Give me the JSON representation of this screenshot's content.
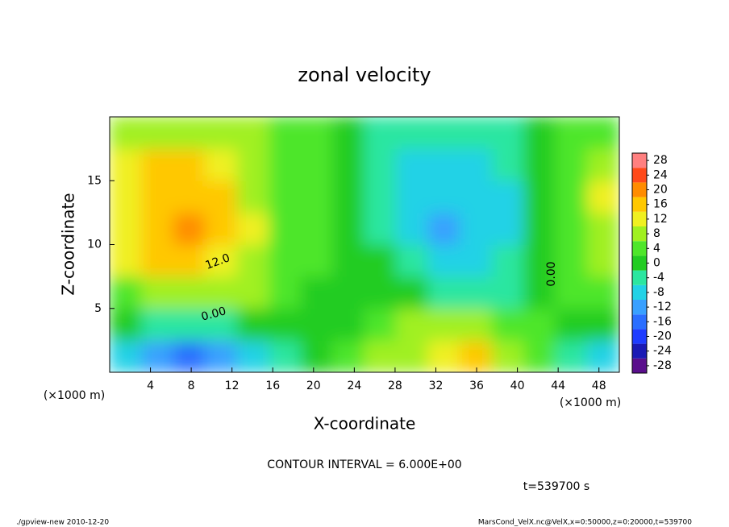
{
  "chart_data": {
    "type": "contour",
    "title": "zonal velocity",
    "x_label": "X-coordinate",
    "y_label": "Z-coordinate",
    "x_unit": "(×1000 m)",
    "xlim": [
      0,
      50
    ],
    "ylim": [
      0,
      20
    ],
    "xticks": [
      4,
      8,
      12,
      16,
      20,
      24,
      28,
      32,
      36,
      40,
      44,
      48
    ],
    "yticks": [
      5,
      10,
      15
    ],
    "z": [
      [
        -8,
        -12,
        -16,
        -14,
        -8,
        -4,
        -2,
        2,
        6,
        8,
        10,
        16,
        8,
        2,
        -4,
        -8
      ],
      [
        -2,
        -4,
        -4,
        -4,
        -2,
        -2,
        -2,
        0,
        4,
        6,
        6,
        6,
        4,
        2,
        0,
        -2
      ],
      [
        4,
        6,
        8,
        8,
        6,
        2,
        0,
        0,
        0,
        -2,
        -4,
        -4,
        -4,
        -2,
        2,
        4
      ],
      [
        10,
        14,
        14,
        12,
        8,
        4,
        2,
        0,
        -2,
        -6,
        -8,
        -8,
        -6,
        -2,
        4,
        6
      ],
      [
        12,
        16,
        20,
        16,
        10,
        4,
        2,
        0,
        -4,
        -8,
        -12,
        -10,
        -8,
        -2,
        4,
        8
      ],
      [
        12,
        16,
        16,
        14,
        8,
        4,
        2,
        0,
        -4,
        -8,
        -10,
        -10,
        -8,
        -2,
        4,
        10
      ],
      [
        10,
        14,
        14,
        12,
        8,
        4,
        2,
        0,
        -4,
        -8,
        -8,
        -8,
        -6,
        -2,
        4,
        8
      ],
      [
        6,
        8,
        8,
        8,
        6,
        4,
        2,
        0,
        -4,
        -6,
        -6,
        -6,
        -4,
        0,
        2,
        4
      ]
    ],
    "clim": [
      -30,
      30
    ],
    "cticks": [
      -28,
      -24,
      -20,
      -16,
      -12,
      -8,
      -4,
      0,
      4,
      8,
      12,
      16,
      20,
      24,
      28
    ],
    "colors": [
      "#5a0f8c",
      "#1a1ab4",
      "#1e3cff",
      "#2a6eff",
      "#38a0ff",
      "#22d2e6",
      "#2ce6a0",
      "#22cc22",
      "#4ee62a",
      "#a0f020",
      "#f0f020",
      "#ffc800",
      "#ff8c00",
      "#ff4a1a",
      "#ff8080"
    ],
    "contour_labels": [
      "12.0",
      "0.00",
      "0.00"
    ],
    "contour_interval": "CONTOUR INTERVAL = 6.000E+00",
    "time": "t=539700 s",
    "footer_left": "./gpview-new  2010-12-20",
    "footer_right": "MarsCond_VelX.nc@VelX,x=0:50000,z=0:20000,t=539700"
  }
}
